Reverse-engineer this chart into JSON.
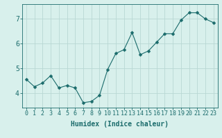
{
  "x": [
    0,
    1,
    2,
    3,
    4,
    5,
    6,
    7,
    8,
    9,
    10,
    11,
    12,
    13,
    14,
    15,
    16,
    17,
    18,
    19,
    20,
    21,
    22,
    23
  ],
  "y": [
    4.55,
    4.25,
    4.4,
    4.7,
    4.2,
    4.3,
    4.2,
    3.6,
    3.65,
    3.9,
    4.95,
    5.6,
    5.75,
    6.45,
    5.55,
    5.7,
    6.05,
    6.4,
    6.4,
    6.95,
    7.25,
    7.25,
    7.0,
    6.85
  ],
  "line_color": "#1a6b6b",
  "marker": "D",
  "marker_size": 2.5,
  "bg_color": "#d8f0ec",
  "grid_color": "#b8d8d4",
  "xlabel": "Humidex (Indice chaleur)",
  "xlabel_fontsize": 7,
  "tick_fontsize": 6,
  "ylim": [
    3.4,
    7.6
  ],
  "xlim": [
    -0.5,
    23.5
  ],
  "yticks": [
    4,
    5,
    6,
    7
  ],
  "xticks": [
    0,
    1,
    2,
    3,
    4,
    5,
    6,
    7,
    8,
    9,
    10,
    11,
    12,
    13,
    14,
    15,
    16,
    17,
    18,
    19,
    20,
    21,
    22,
    23
  ]
}
